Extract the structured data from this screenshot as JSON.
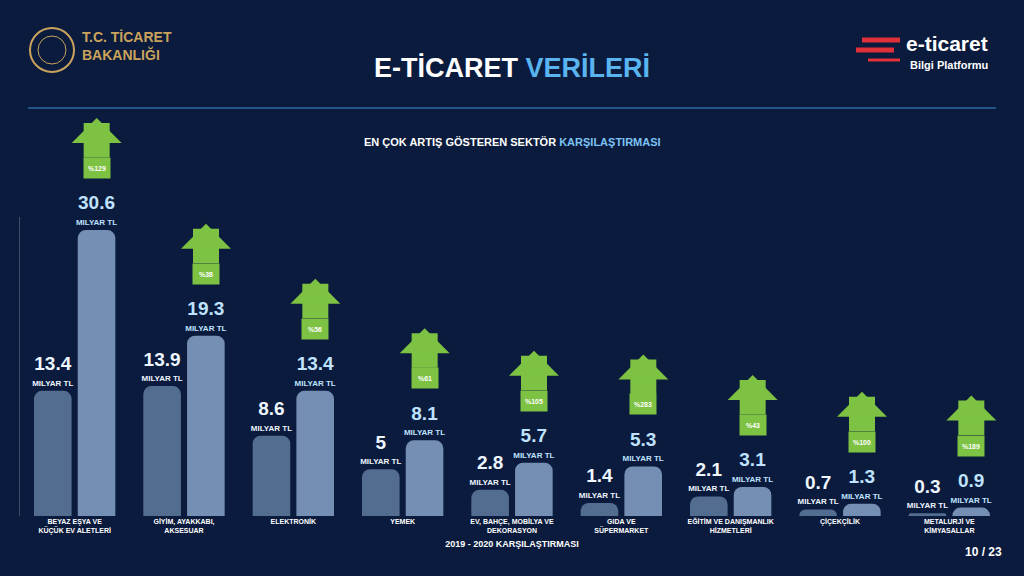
{
  "chart_data": {
    "type": "bar",
    "title": "E-TİCARET VERİLERİ",
    "subtitle": "EN ÇOK ARTIŞ GÖSTEREN SEKTÖR KARŞILAŞTIRMASI",
    "xlabel": "2019 - 2020 KARŞILAŞTIRMASI",
    "annotations": [
      "T.C. TİCARET\nBAKANLIĞI",
      "e-ticaret",
      "Bilgi Platformu",
      "10 / 23"
    ],
    "categories": [
      "BEYAZ EŞYA VE\nKÜÇÜK EV ALETLERİ",
      "GİYİM, AYAKKABI,\nAKSESUAR",
      "ELEKTRONİK",
      "YEMEK",
      "EV, BAHÇE, MOBİLYA VE\nDEKORASYON",
      "GIDA VE\nSÜPERMARKET",
      "EĞİTİM VE DANIŞMANLIK\nHİZMETLERİ",
      "ÇİÇEKÇİLİK",
      "METALURJİ VE\nKİMYASALLAR"
    ],
    "series": [
      {
        "color": "#8fb0d6",
        "values": [
          13.4,
          13.9,
          8.6,
          5,
          2.8,
          1.4,
          2.1,
          0.7,
          0.3
        ],
        "value_labels": [
          "13.4\nMILYAR TL",
          "13.9\nMILYAR TL",
          "8.6\nMILYAR TL",
          "5\nMILYAR TL",
          "2.8\nMILYAR TL",
          "1.4\nMILYAR TL",
          "2.1\nMILYAR TL",
          "0.7\nMILYAR TL",
          "0.3\nMILYAR TL"
        ]
      },
      {
        "color": "#9dbde0",
        "values": [
          30.6,
          19.3,
          13.4,
          8.1,
          5.7,
          5.3,
          3.1,
          1.3,
          0.9
        ],
        "value_labels": [
          "30.6\nMILYAR TL",
          "19.3\nMILYAR TL",
          "13.4\nMILYAR TL",
          "8.1\nMILYAR TL",
          "5.7\nMILYAR TL",
          "5.3\nMILYAR TL",
          "3.1\nMILYAR TL",
          "1.3\nMILYAR TL",
          "0.9\nMILYAR TL"
        ]
      }
    ],
    "growth": {
      "color": "#7dc242",
      "values": [
        129,
        38,
        56,
        61,
        105,
        283,
        43,
        100,
        189
      ],
      "value_labels": [
        "%129",
        "%38",
        "%56",
        "%61",
        "%105",
        "%283",
        "%43",
        "%100",
        "%189"
      ]
    },
    "ylim": [
      0,
      32
    ],
    "grid": false,
    "tick_labels": "x",
    "data_labels": true
  }
}
